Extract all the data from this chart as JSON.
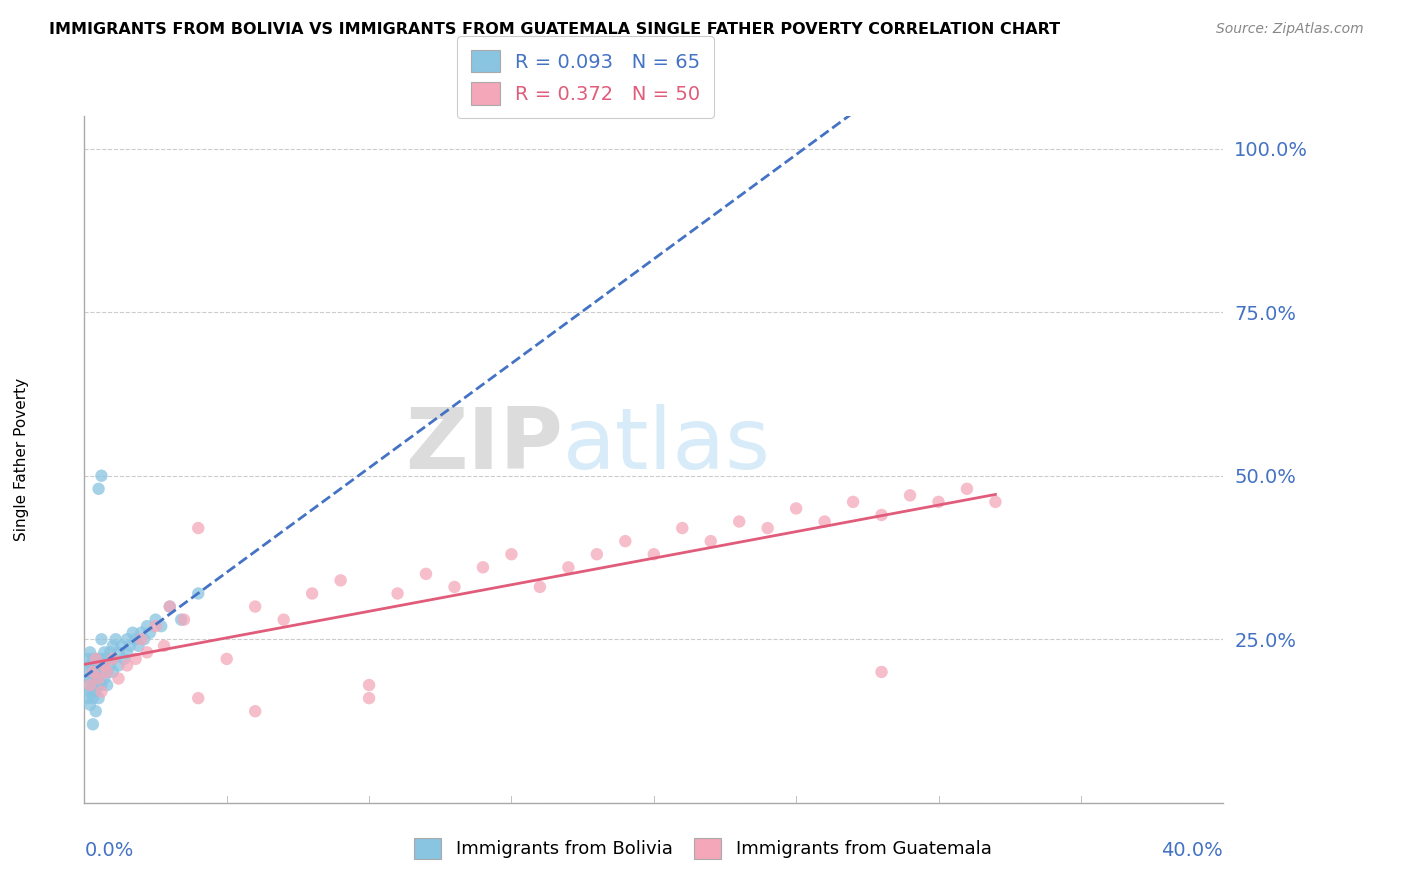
{
  "title": "IMMIGRANTS FROM BOLIVIA VS IMMIGRANTS FROM GUATEMALA SINGLE FATHER POVERTY CORRELATION CHART",
  "source": "Source: ZipAtlas.com",
  "ylabel": "Single Father Poverty",
  "yticks": [
    0.0,
    0.25,
    0.5,
    0.75,
    1.0
  ],
  "ytick_labels": [
    "",
    "25.0%",
    "50.0%",
    "75.0%",
    "100.0%"
  ],
  "xlim": [
    0.0,
    0.4
  ],
  "ylim": [
    0.0,
    1.05
  ],
  "bolivia_R": 0.093,
  "bolivia_N": 65,
  "guatemala_R": 0.372,
  "guatemala_N": 50,
  "bolivia_color": "#89c4e1",
  "guatemala_color": "#f4a7b9",
  "bolivia_line_color": "#4472C4",
  "guatemala_line_color": "#e05c7a",
  "watermark_zip": "ZIP",
  "watermark_atlas": "atlas",
  "bolivia_x": [
    0.001,
    0.001,
    0.001,
    0.001,
    0.002,
    0.002,
    0.002,
    0.002,
    0.002,
    0.003,
    0.003,
    0.003,
    0.003,
    0.003,
    0.003,
    0.003,
    0.004,
    0.004,
    0.004,
    0.004,
    0.004,
    0.005,
    0.005,
    0.005,
    0.005,
    0.005,
    0.006,
    0.006,
    0.006,
    0.006,
    0.007,
    0.007,
    0.007,
    0.008,
    0.008,
    0.008,
    0.009,
    0.009,
    0.01,
    0.01,
    0.01,
    0.011,
    0.012,
    0.012,
    0.013,
    0.014,
    0.015,
    0.015,
    0.016,
    0.017,
    0.018,
    0.019,
    0.02,
    0.021,
    0.022,
    0.023,
    0.025,
    0.027,
    0.03,
    0.034,
    0.04,
    0.005,
    0.006,
    0.004,
    0.003
  ],
  "bolivia_y": [
    0.18,
    0.2,
    0.22,
    0.16,
    0.19,
    0.17,
    0.21,
    0.15,
    0.23,
    0.2,
    0.18,
    0.22,
    0.17,
    0.21,
    0.16,
    0.19,
    0.22,
    0.2,
    0.18,
    0.17,
    0.21,
    0.2,
    0.18,
    0.22,
    0.16,
    0.19,
    0.25,
    0.22,
    0.2,
    0.18,
    0.21,
    0.19,
    0.23,
    0.22,
    0.2,
    0.18,
    0.21,
    0.23,
    0.24,
    0.22,
    0.2,
    0.25,
    0.23,
    0.21,
    0.24,
    0.22,
    0.25,
    0.23,
    0.24,
    0.26,
    0.25,
    0.24,
    0.26,
    0.25,
    0.27,
    0.26,
    0.28,
    0.27,
    0.3,
    0.28,
    0.32,
    0.48,
    0.5,
    0.14,
    0.12
  ],
  "guatemala_x": [
    0.002,
    0.003,
    0.004,
    0.005,
    0.006,
    0.007,
    0.008,
    0.01,
    0.012,
    0.015,
    0.018,
    0.02,
    0.022,
    0.025,
    0.028,
    0.03,
    0.035,
    0.04,
    0.05,
    0.06,
    0.07,
    0.08,
    0.09,
    0.1,
    0.11,
    0.12,
    0.13,
    0.14,
    0.15,
    0.16,
    0.17,
    0.18,
    0.19,
    0.2,
    0.21,
    0.22,
    0.23,
    0.24,
    0.25,
    0.26,
    0.27,
    0.28,
    0.29,
    0.3,
    0.31,
    0.32,
    0.04,
    0.06,
    0.1,
    0.28
  ],
  "guatemala_y": [
    0.18,
    0.2,
    0.22,
    0.19,
    0.17,
    0.21,
    0.2,
    0.22,
    0.19,
    0.21,
    0.22,
    0.25,
    0.23,
    0.27,
    0.24,
    0.3,
    0.28,
    0.42,
    0.22,
    0.3,
    0.28,
    0.32,
    0.34,
    0.18,
    0.32,
    0.35,
    0.33,
    0.36,
    0.38,
    0.33,
    0.36,
    0.38,
    0.4,
    0.38,
    0.42,
    0.4,
    0.43,
    0.42,
    0.45,
    0.43,
    0.46,
    0.44,
    0.47,
    0.46,
    0.48,
    0.46,
    0.16,
    0.14,
    0.16,
    0.2
  ]
}
